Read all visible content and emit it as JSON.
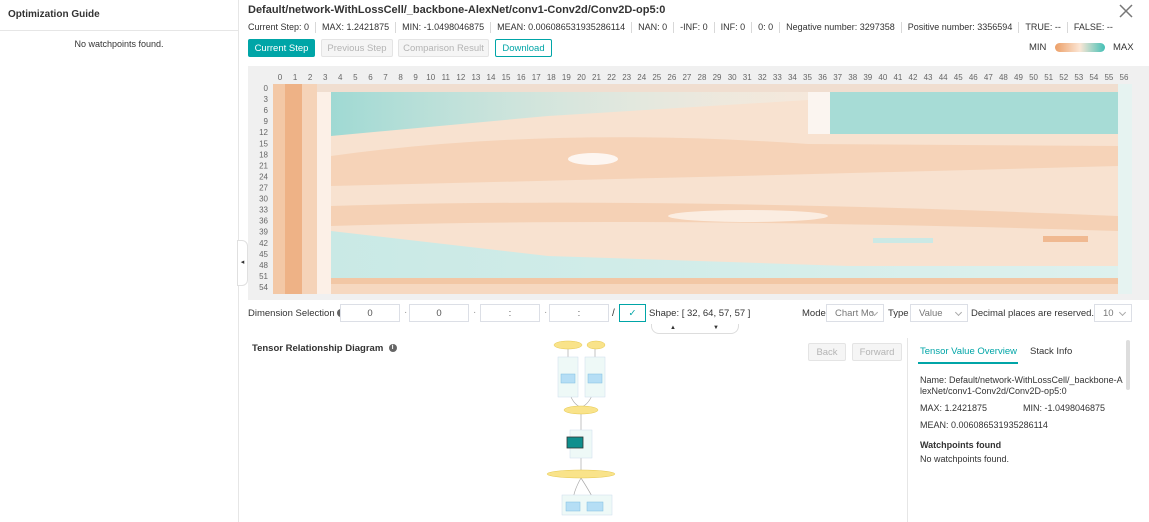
{
  "sidebar": {
    "title": "Optimization Guide",
    "empty": "No watchpoints found."
  },
  "header": {
    "title": "Default/network-WithLossCell/_backbone-AlexNet/conv1-Conv2d/Conv2D-op5:0",
    "stats": [
      "Current Step:  0",
      "MAX: 1.2421875",
      "MIN: -1.0498046875",
      "MEAN: 0.006086531935286114",
      "NAN: 0",
      "-INF: 0",
      "INF: 0",
      "0: 0",
      "Negative number: 3297358",
      "Positive number: 3356594",
      "TRUE: --",
      "FALSE: --"
    ]
  },
  "buttons": {
    "current": "Current Step",
    "previous": "Previous Step",
    "comparison": "Comparison Result",
    "download": "Download"
  },
  "legend": {
    "min": "MIN",
    "max": "MAX"
  },
  "heatmap": {
    "columns": [
      0,
      1,
      2,
      3,
      4,
      5,
      6,
      7,
      8,
      9,
      10,
      11,
      12,
      13,
      14,
      15,
      16,
      17,
      18,
      19,
      20,
      21,
      22,
      23,
      24,
      25,
      26,
      27,
      28,
      29,
      30,
      31,
      32,
      33,
      34,
      35,
      36,
      37,
      38,
      39,
      40,
      41,
      42,
      43,
      44,
      45,
      46,
      47,
      48,
      49,
      50,
      51,
      52,
      53,
      54,
      55,
      56
    ],
    "rows": [
      0,
      3,
      6,
      9,
      12,
      15,
      18,
      21,
      24,
      27,
      30,
      33,
      36,
      39,
      42,
      45,
      48,
      51,
      54
    ]
  },
  "dimension": {
    "label": "Dimension Selection",
    "inputs": [
      "0",
      "0",
      ":",
      ":"
    ],
    "shape": "Shape: [ 32, 64, 57, 57 ]",
    "mode_label": "Mode",
    "mode": "Chart Mo",
    "type_label": "Type",
    "type": "Value",
    "decimal_label": "Decimal places are reserved.",
    "decimal": "10"
  },
  "diagram": {
    "title": "Tensor Relationship Diagram",
    "back": "Back",
    "forward": "Forward"
  },
  "detail": {
    "tabs": [
      "Tensor Value Overview",
      "Stack Info"
    ],
    "name": "Name: Default/network-WithLossCell/_backbone-AlexNet/conv1-Conv2d/Conv2D-op5:0",
    "max": "MAX: 1.2421875",
    "min": "MIN: -1.0498046875",
    "mean": "MEAN: 0.006086531935286114",
    "watch_title": "Watchpoints found",
    "watch_empty": "No watchpoints found."
  }
}
